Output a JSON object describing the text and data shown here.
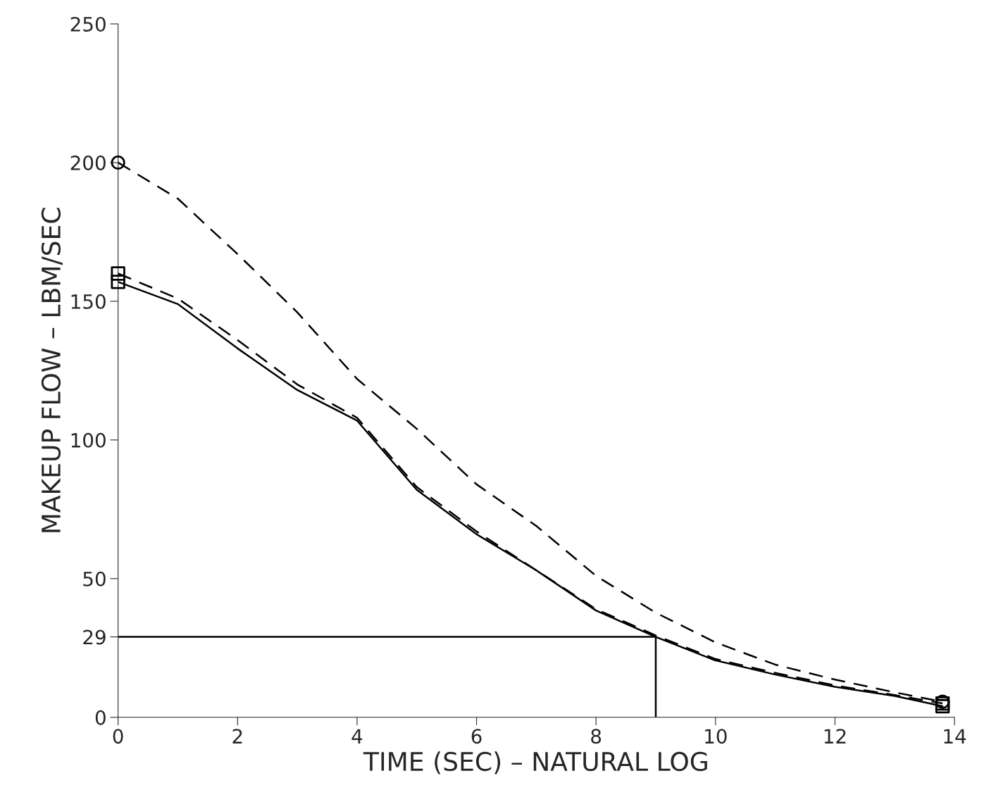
{
  "chart_data": {
    "type": "line",
    "xlabel": "TIME (SEC) – NATURAL LOG",
    "ylabel": "MAKEUP FLOW – LBM/SEC",
    "xlim": [
      0,
      14
    ],
    "xticks": [
      0,
      2,
      4,
      6,
      8,
      10,
      12,
      14
    ],
    "ylim": [
      0,
      250
    ],
    "yticks": [
      0,
      29,
      50,
      100,
      150,
      200,
      250
    ],
    "grid": false,
    "legend": false,
    "series": [
      {
        "color": "#000000",
        "line_style": "dashed",
        "x": [
          0,
          1,
          2,
          3,
          4,
          5,
          6,
          7,
          8,
          9,
          10,
          11,
          12,
          13,
          13.8
        ],
        "values": [
          200,
          187,
          167,
          146,
          122,
          104,
          84,
          69,
          51,
          37.7,
          27,
          19,
          13.6,
          9,
          5.6
        ]
      },
      {
        "color": "#000000",
        "line_style": "dashed",
        "x": [
          0,
          1,
          2,
          3,
          4,
          5,
          6,
          7,
          8,
          9,
          10,
          11,
          12,
          13,
          13.8
        ],
        "values": [
          160,
          151,
          136,
          120,
          108,
          83,
          67,
          53,
          39,
          29.5,
          21,
          16,
          11.5,
          8,
          5
        ]
      },
      {
        "color": "#000000",
        "line_style": "solid",
        "x": [
          0,
          1,
          2,
          3,
          4,
          5,
          6,
          7,
          8,
          9,
          10,
          11,
          12,
          13,
          13.8
        ],
        "values": [
          157,
          149,
          133,
          118,
          107,
          82,
          66,
          53,
          38.5,
          29,
          20.5,
          15.4,
          11,
          7.7,
          4
        ]
      },
      {
        "color": "#000000",
        "line_style": "solid",
        "x": [
          0,
          9,
          9
        ],
        "values": [
          29,
          29,
          0
        ]
      },
      {
        "type": "scatter",
        "color": "#000000",
        "marker": "circle",
        "x": [
          0,
          13.8
        ],
        "values": [
          200,
          5.6
        ]
      },
      {
        "type": "scatter",
        "color": "#000000",
        "marker": "square",
        "x": [
          0,
          13.8
        ],
        "values": [
          160,
          5
        ]
      },
      {
        "type": "scatter",
        "color": "#000000",
        "marker": "square",
        "x": [
          0,
          13.8
        ],
        "values": [
          157,
          4
        ]
      }
    ]
  }
}
